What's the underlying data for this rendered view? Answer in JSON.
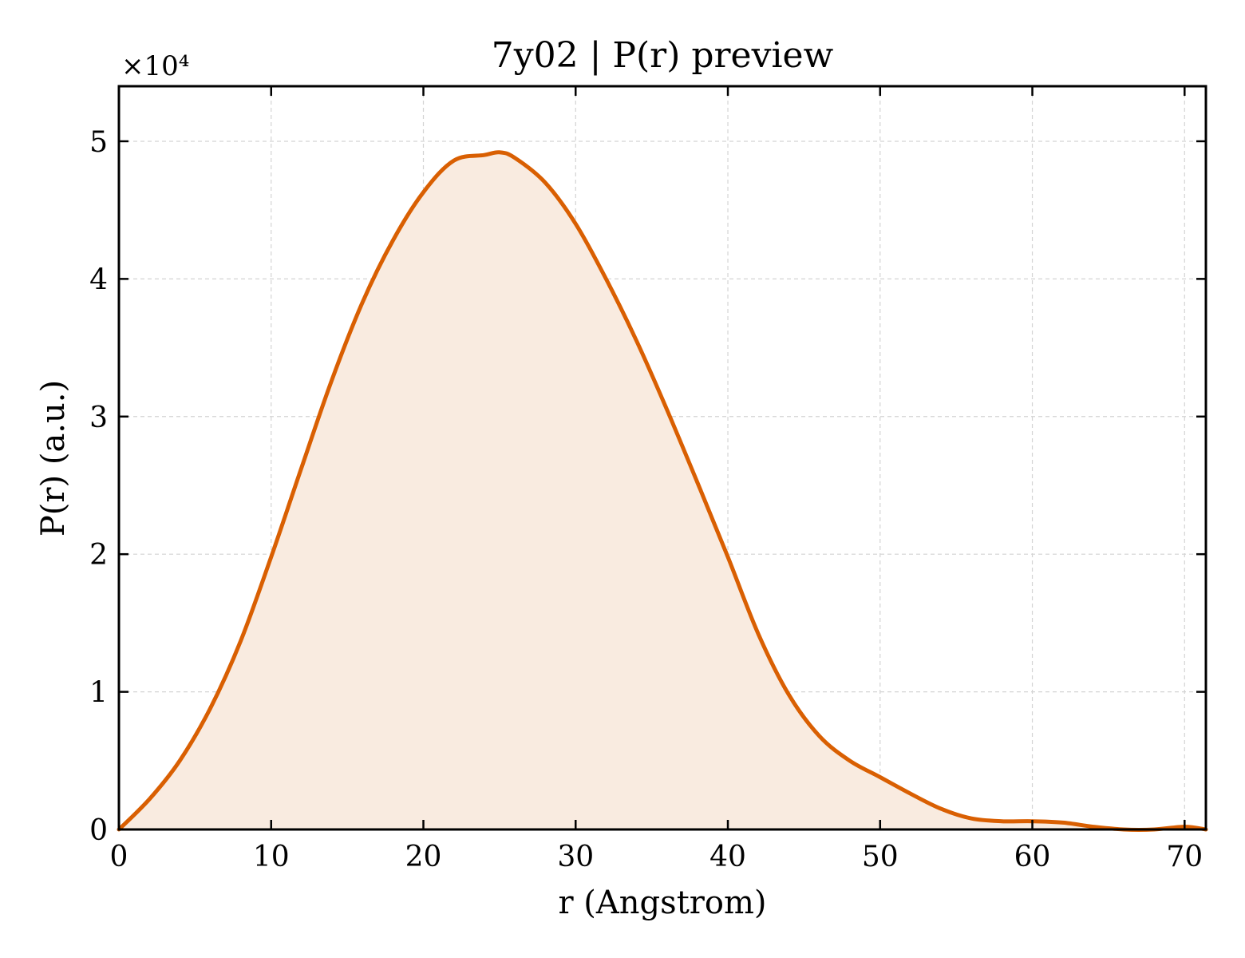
{
  "chart_data": {
    "type": "area",
    "title": "7y02 | P(r) preview",
    "xlabel": "r (Angstrom)",
    "ylabel": "P(r) (a.u.)",
    "y_multiplier": "×10⁴",
    "xlim": [
      0,
      71.4
    ],
    "ylim": [
      0,
      5.4
    ],
    "x_ticks": [
      "0",
      "10",
      "20",
      "30",
      "40",
      "50",
      "60",
      "70"
    ],
    "x_tick_values": [
      0,
      10,
      20,
      30,
      40,
      50,
      60,
      70
    ],
    "y_ticks": [
      "0",
      "1",
      "2",
      "3",
      "4",
      "5"
    ],
    "y_tick_values": [
      0,
      1,
      2,
      3,
      4,
      5
    ],
    "grid": true,
    "colors": {
      "line": "#d95f02",
      "fill": "#f9ebe0",
      "grid": "#d3d3d3"
    },
    "series": [
      {
        "x": [
          0,
          2,
          4,
          6,
          8,
          10,
          12,
          14,
          16,
          18,
          20,
          22,
          24,
          25,
          26,
          28,
          30,
          32,
          34,
          36,
          38,
          40,
          42,
          44,
          46,
          48,
          50,
          52,
          54,
          56,
          58,
          60,
          62,
          64,
          66,
          68,
          70,
          71.4
        ],
        "values": [
          0.0,
          0.22,
          0.5,
          0.88,
          1.37,
          1.98,
          2.63,
          3.27,
          3.83,
          4.28,
          4.63,
          4.86,
          4.9,
          4.92,
          4.88,
          4.7,
          4.4,
          4.0,
          3.55,
          3.05,
          2.52,
          1.98,
          1.42,
          0.98,
          0.68,
          0.5,
          0.38,
          0.26,
          0.15,
          0.08,
          0.06,
          0.06,
          0.05,
          0.02,
          0.0,
          0.0,
          0.02,
          0.0
        ]
      }
    ]
  }
}
